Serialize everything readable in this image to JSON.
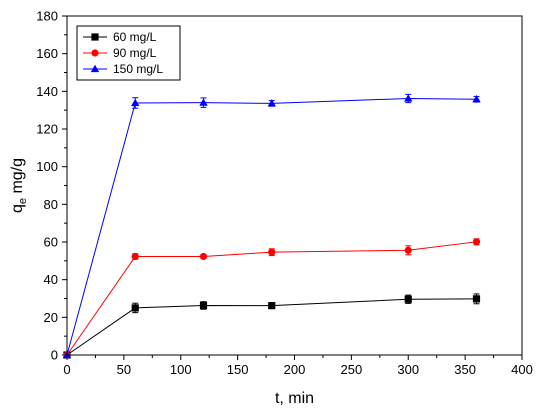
{
  "chart_data": {
    "type": "line",
    "xlabel": "t, min",
    "ylabel_main": "q",
    "ylabel_sub": "e",
    "ylabel_unit": " mg/g",
    "xlim": [
      0,
      400
    ],
    "ylim": [
      0,
      180
    ],
    "xticks": [
      0,
      50,
      100,
      150,
      200,
      250,
      300,
      350,
      400
    ],
    "yticks": [
      0,
      20,
      40,
      60,
      80,
      100,
      120,
      140,
      160,
      180
    ],
    "grid": false,
    "legend_position": "top-left",
    "series": [
      {
        "name": "60 mg/L",
        "color": "#000000",
        "marker": "square",
        "x": [
          0,
          60,
          120,
          180,
          300,
          360
        ],
        "y": [
          0,
          25,
          26.3,
          26.2,
          29.6,
          29.8
        ],
        "err": [
          0,
          2.5,
          2.0,
          1.0,
          2.2,
          2.6
        ]
      },
      {
        "name": "90 mg/L",
        "color": "#ff0000",
        "marker": "circle",
        "x": [
          0,
          60,
          120,
          180,
          300,
          360
        ],
        "y": [
          0,
          52.3,
          52.3,
          54.6,
          55.6,
          60.1
        ],
        "err": [
          0,
          1.5,
          1.0,
          1.8,
          2.4,
          1.6
        ]
      },
      {
        "name": "150 mg/L",
        "color": "#0000ff",
        "marker": "triangle",
        "x": [
          0,
          60,
          120,
          180,
          300,
          360
        ],
        "y": [
          0,
          133.8,
          134.0,
          133.6,
          136.2,
          135.8
        ],
        "err": [
          0,
          2.8,
          2.5,
          1.5,
          2.2,
          1.5
        ]
      }
    ]
  }
}
